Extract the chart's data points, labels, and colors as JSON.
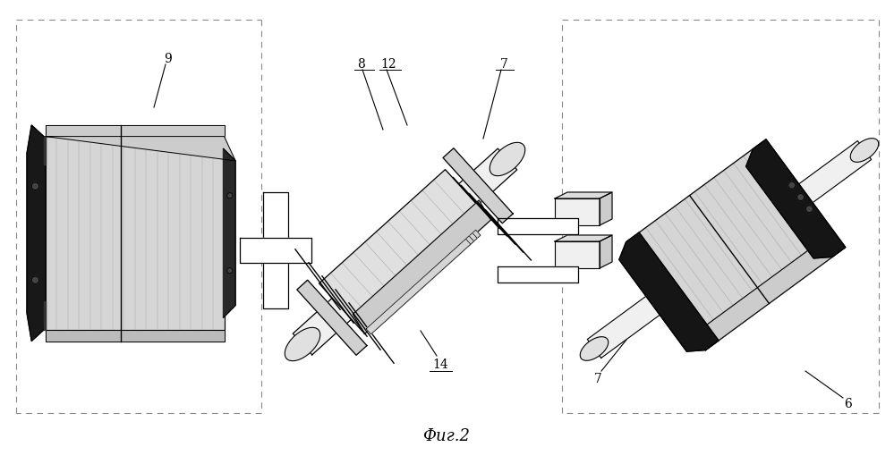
{
  "figcaption": "Фиг.2",
  "background": "#ffffff",
  "line_color": "#000000",
  "gray_light": "#d8d8d8",
  "gray_mid": "#aaaaaa",
  "gray_dark": "#555555",
  "black_fill": "#111111",
  "shaft_color": "#eeeeee",
  "body_hatch": "#c8c8c8"
}
